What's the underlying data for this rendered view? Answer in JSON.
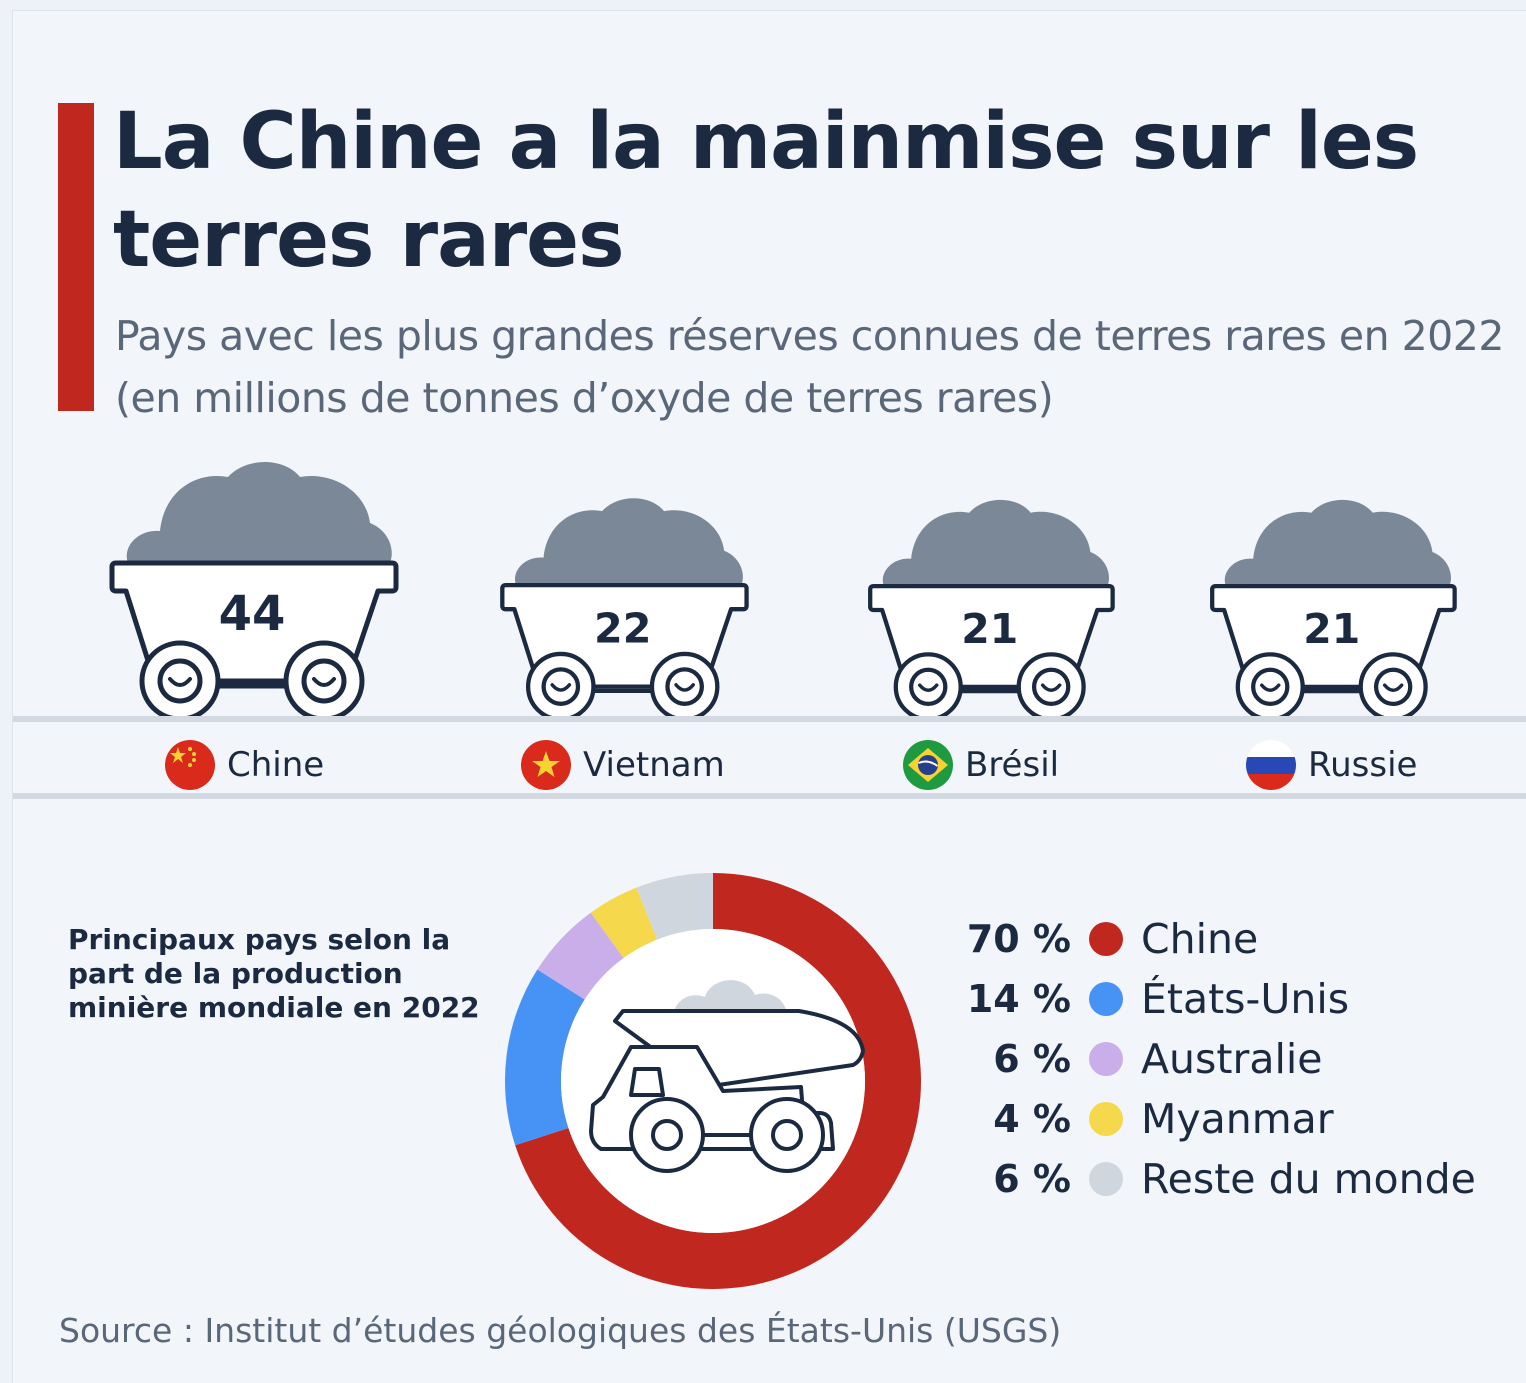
{
  "title": "La Chine a la mainmise sur les terres rares",
  "subtitle": "Pays avec les plus grandes réserves connues de terres rares en 2022 (en millions de tonnes d’oxyde de terres rares)",
  "source": "Source : Institut d’études géologiques des États-Unis (USGS)",
  "colors": {
    "accent": "#c0281f",
    "text": "#1b2a40",
    "muted": "#5a6779",
    "ore": "#7a8898"
  },
  "chart_data": [
    {
      "type": "bar",
      "title": "Pays avec les plus grandes réserves connues de terres rares en 2022 (en millions de tonnes d’oxyde de terres rares)",
      "categories": [
        "Chine",
        "Vietnam",
        "Brésil",
        "Russie"
      ],
      "values": [
        44,
        22,
        21,
        21
      ],
      "flag_icons": [
        "china-flag-icon",
        "vietnam-flag-icon",
        "brazil-flag-icon",
        "russia-flag-icon"
      ]
    },
    {
      "type": "pie",
      "title": "Principaux pays selon la part de la production minière mondiale en 2022",
      "categories": [
        "Chine",
        "États-Unis",
        "Australie",
        "Myanmar",
        "Reste du monde"
      ],
      "values": [
        70,
        14,
        6,
        4,
        6
      ],
      "labels": [
        "70 %",
        "14 %",
        "6 %",
        "4 %",
        "6 %"
      ],
      "colors": [
        "#c0281f",
        "#4793f5",
        "#c9aeea",
        "#f6d84c",
        "#cfd6dd"
      ],
      "center_icon": "mining-truck-icon",
      "legend": "right"
    }
  ]
}
